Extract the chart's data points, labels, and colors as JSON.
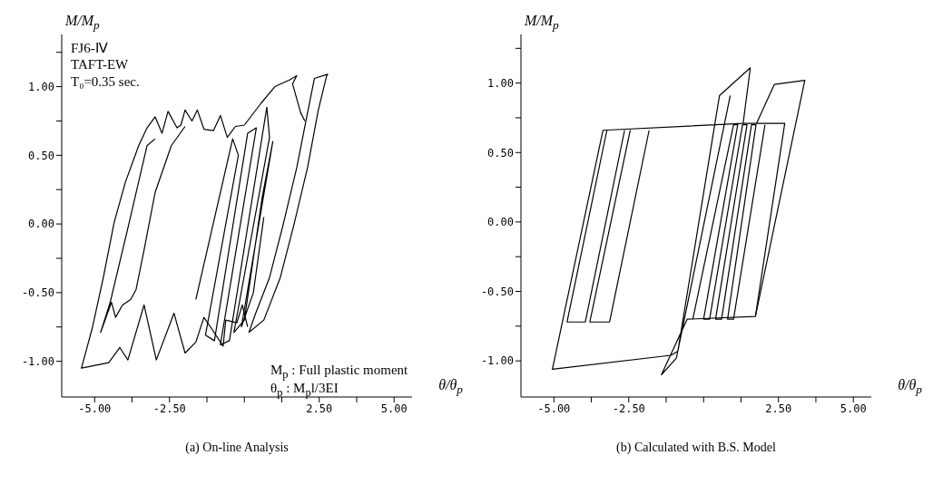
{
  "chart_data": [
    {
      "type": "line",
      "title": "(a) On-line Analysis",
      "xlabel": "θ/θ$_{p}$",
      "ylabel": "M/M$_{p}$",
      "annotations": [
        "FJ6-Ⅳ",
        "TAFT-EW",
        "T₀=0.35 sec.",
        "M$_{p}$ : Full plastic moment",
        "θ$_{p}$ : M$_{p}$l/3EI"
      ],
      "xlim": [
        -6.1,
        5.6
      ],
      "ylim": [
        -1.26,
        1.38
      ],
      "xticks": [
        {
          "value": -5,
          "label": "-5.00"
        },
        {
          "value": -3.75,
          "label": null
        },
        {
          "value": -2.5,
          "label": "-2.50"
        },
        {
          "value": -1.25,
          "label": null
        },
        {
          "value": 0,
          "label": null
        },
        {
          "value": 1.25,
          "label": null
        },
        {
          "value": 2.5,
          "label": "2.50"
        },
        {
          "value": 3.75,
          "label": null
        },
        {
          "value": 5,
          "label": "5.00"
        }
      ],
      "yticks": [
        {
          "value": -1,
          "label": "-1.00"
        },
        {
          "value": -0.75,
          "label": null
        },
        {
          "value": -0.5,
          "label": "-0.50"
        },
        {
          "value": -0.25,
          "label": null
        },
        {
          "value": 0,
          "label": "0.00"
        },
        {
          "value": 0.25,
          "label": null
        },
        {
          "value": 0.5,
          "label": "0.50"
        },
        {
          "value": 0.75,
          "label": null
        },
        {
          "value": 1,
          "label": "1.00"
        },
        {
          "value": 1.25,
          "label": null
        }
      ],
      "series": [
        {
          "color": "#000000",
          "x": [
            0.15,
            0.65,
            1.2,
            1.65,
            2.11,
            2.47,
            2.75,
            2.79
          ],
          "values": [
            -0.79,
            -0.7,
            -0.39,
            -0.01,
            0.41,
            0.83,
            1.08,
            1.09
          ]
        },
        {
          "color": "#000000",
          "x": [
            2.79,
            2.34,
            2.11,
            1.75,
            1.29,
            0.84,
            0.38,
            0.15
          ],
          "values": [
            1.09,
            1.06,
            0.81,
            0.41,
            -0.01,
            -0.39,
            -0.65,
            -0.79
          ]
        },
        {
          "color": "#000000",
          "x": [
            2.02,
            1.88,
            1.61,
            1.75,
            1.52,
            1.02,
            0.56,
            0,
            -0.3,
            -0.57,
            -0.8,
            -1.03,
            -1.35,
            -1.57,
            -1.75,
            -1.98,
            -2.12,
            -2.25,
            -2.55,
            -2.75,
            -2.98,
            -3.25,
            -3.53,
            -3.98,
            -4.35,
            -4.71,
            -5.07,
            -5.44,
            -4.53,
            -4.16,
            -3.89,
            -3.35,
            -2.94,
            -2.35,
            -1.98,
            -1.62,
            -1.35,
            -1.07,
            -0.71,
            -0.62,
            -0.25,
            -0.07,
            0.11
          ],
          "values": [
            0.75,
            0.81,
            1.02,
            1.08,
            1.05,
            1.0,
            0.88,
            0.72,
            0.71,
            0.63,
            0.79,
            0.68,
            0.69,
            0.83,
            0.75,
            0.83,
            0.72,
            0.7,
            0.82,
            0.66,
            0.78,
            0.7,
            0.57,
            0.3,
            0.01,
            -0.39,
            -0.75,
            -1.05,
            -1.01,
            -0.9,
            -0.99,
            -0.59,
            -0.99,
            -0.65,
            -0.94,
            -0.86,
            -0.68,
            -0.77,
            -0.89,
            -0.7,
            -0.72,
            -0.59,
            -0.75
          ]
        },
        {
          "color": "#000000",
          "x": [
            -1.98,
            -2.44,
            -2.98,
            -3.35,
            -3.62,
            -3.8,
            -4.07,
            -4.3,
            -4.44,
            -4.8,
            -4.48,
            -3.89,
            -3.25,
            -2.98
          ],
          "values": [
            0.71,
            0.57,
            0.23,
            -0.19,
            -0.48,
            -0.55,
            -0.59,
            -0.68,
            -0.57,
            -0.79,
            -0.57,
            -0.03,
            0.57,
            0.62
          ]
        },
        {
          "color": "#000000",
          "x": [
            -1.62,
            -0.39,
            -0.2,
            -1.3,
            -1.0,
            0.11,
            0.4,
            -0.8,
            -0.5,
            0.75,
            0.84,
            -0.35,
            0,
            0.6,
            0.95,
            -0.1,
            0.3,
            0.65
          ],
          "values": [
            -0.55,
            0.62,
            0.5,
            -0.81,
            -0.85,
            0.66,
            0.7,
            -0.88,
            -0.85,
            0.85,
            0.63,
            -0.79,
            -0.7,
            0.2,
            0.6,
            -0.75,
            -0.5,
            0.05
          ]
        }
      ]
    },
    {
      "type": "line",
      "title": "(b) Calculated with B.S. Model",
      "xlabel": "θ/θ$_{p}$",
      "ylabel": "M/M$_{p}$",
      "xlim": [
        -6.1,
        5.6
      ],
      "ylim": [
        -1.26,
        1.35
      ],
      "xticks": [
        {
          "value": -5,
          "label": "-5.00"
        },
        {
          "value": -3.75,
          "label": null
        },
        {
          "value": -2.5,
          "label": "-2.50"
        },
        {
          "value": -1.25,
          "label": null
        },
        {
          "value": 0,
          "label": null
        },
        {
          "value": 1.25,
          "label": null
        },
        {
          "value": 2.5,
          "label": "2.50"
        },
        {
          "value": 3.75,
          "label": null
        },
        {
          "value": 5,
          "label": "5.00"
        }
      ],
      "yticks": [
        {
          "value": -1,
          "label": "-1.00"
        },
        {
          "value": -0.75,
          "label": null
        },
        {
          "value": -0.5,
          "label": "-0.50"
        },
        {
          "value": -0.25,
          "label": null
        },
        {
          "value": 0,
          "label": "0.00"
        },
        {
          "value": 0.25,
          "label": null
        },
        {
          "value": 0.5,
          "label": "0.50"
        },
        {
          "value": 0.75,
          "label": null
        },
        {
          "value": 1,
          "label": "1.00"
        },
        {
          "value": 1.25,
          "label": null
        }
      ],
      "series": [
        {
          "color": "#000000",
          "x": [
            1.32,
            -3.36,
            -5.05,
            -1.09,
            -0.86,
            0.53,
            1.56,
            1.32,
            2.71,
            1.73,
            -0.55,
            -1.41,
            -0.91,
            0.89
          ],
          "values": [
            0.71,
            0.66,
            -1.06,
            -0.96,
            -0.93,
            0.91,
            1.11,
            0.71,
            0.71,
            -0.68,
            -0.7,
            -1.1,
            -0.98,
            0.91
          ]
        },
        {
          "color": "#000000",
          "x": [
            1.77,
            2.36,
            3.38,
            1.73
          ],
          "values": [
            0.71,
            0.99,
            1.02,
            -0.68
          ]
        },
        {
          "color": "#000000",
          "x": [
            -3.23,
            -4.56,
            -3.95,
            -2.64
          ],
          "values": [
            0.66,
            -0.72,
            -0.72,
            0.66
          ]
        },
        {
          "color": "#000000",
          "x": [
            -2.45,
            -3.8,
            -3.14,
            -1.82
          ],
          "values": [
            0.66,
            -0.72,
            -0.72,
            0.66
          ]
        },
        {
          "color": "#000000",
          "x": [
            -0.36,
            1.0,
            1.14,
            0.0,
            0.2,
            1.3,
            1.45,
            0.4,
            0.6,
            1.6,
            1.75,
            0.8,
            1.0,
            2.05
          ],
          "values": [
            -0.7,
            0.7,
            0.7,
            -0.7,
            -0.7,
            0.7,
            0.7,
            -0.7,
            -0.7,
            0.7,
            0.7,
            -0.7,
            -0.7,
            0.7
          ]
        }
      ]
    }
  ]
}
